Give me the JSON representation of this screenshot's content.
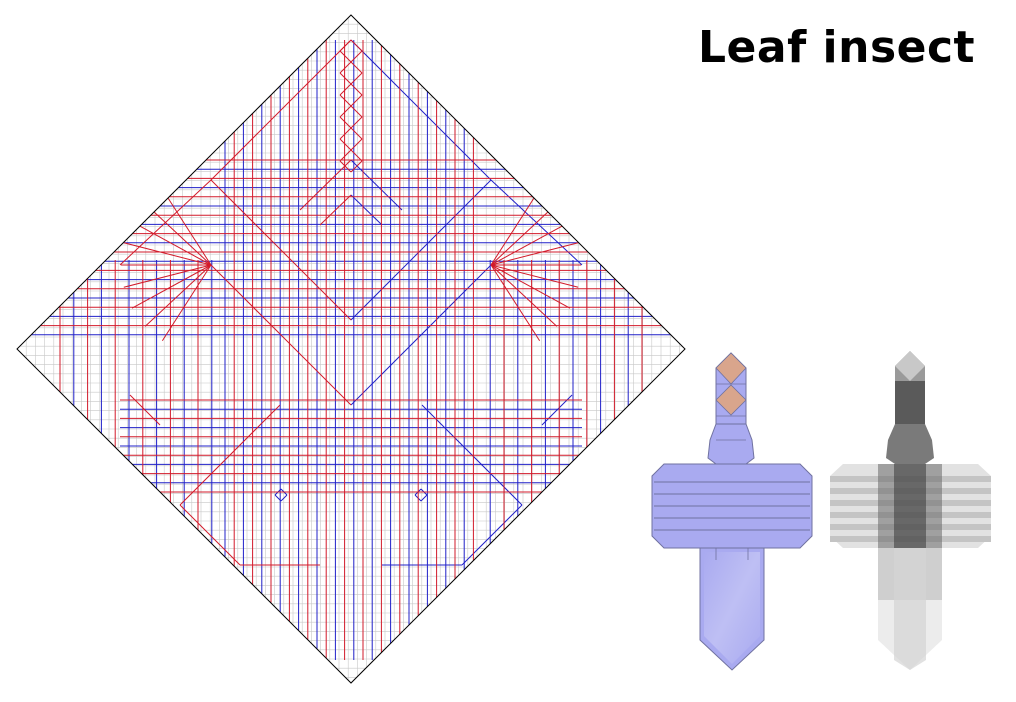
{
  "title": "Leaf insect",
  "colors": {
    "mountain": "#d21a2a",
    "valley": "#2020c8",
    "grid": "#c8c8c8",
    "border": "#000000",
    "model_fill": "#a9aaf0",
    "model_edge": "#7072a0",
    "head_fill": "#d9a58c",
    "xray_light": "#e4e4e4",
    "xray_dark": "#3a3a3a"
  },
  "icons": {
    "crease_pattern": "origami-crease-pattern",
    "folded_model": "folded-leaf-insect-model",
    "xray_view": "x-ray-layer-view"
  }
}
